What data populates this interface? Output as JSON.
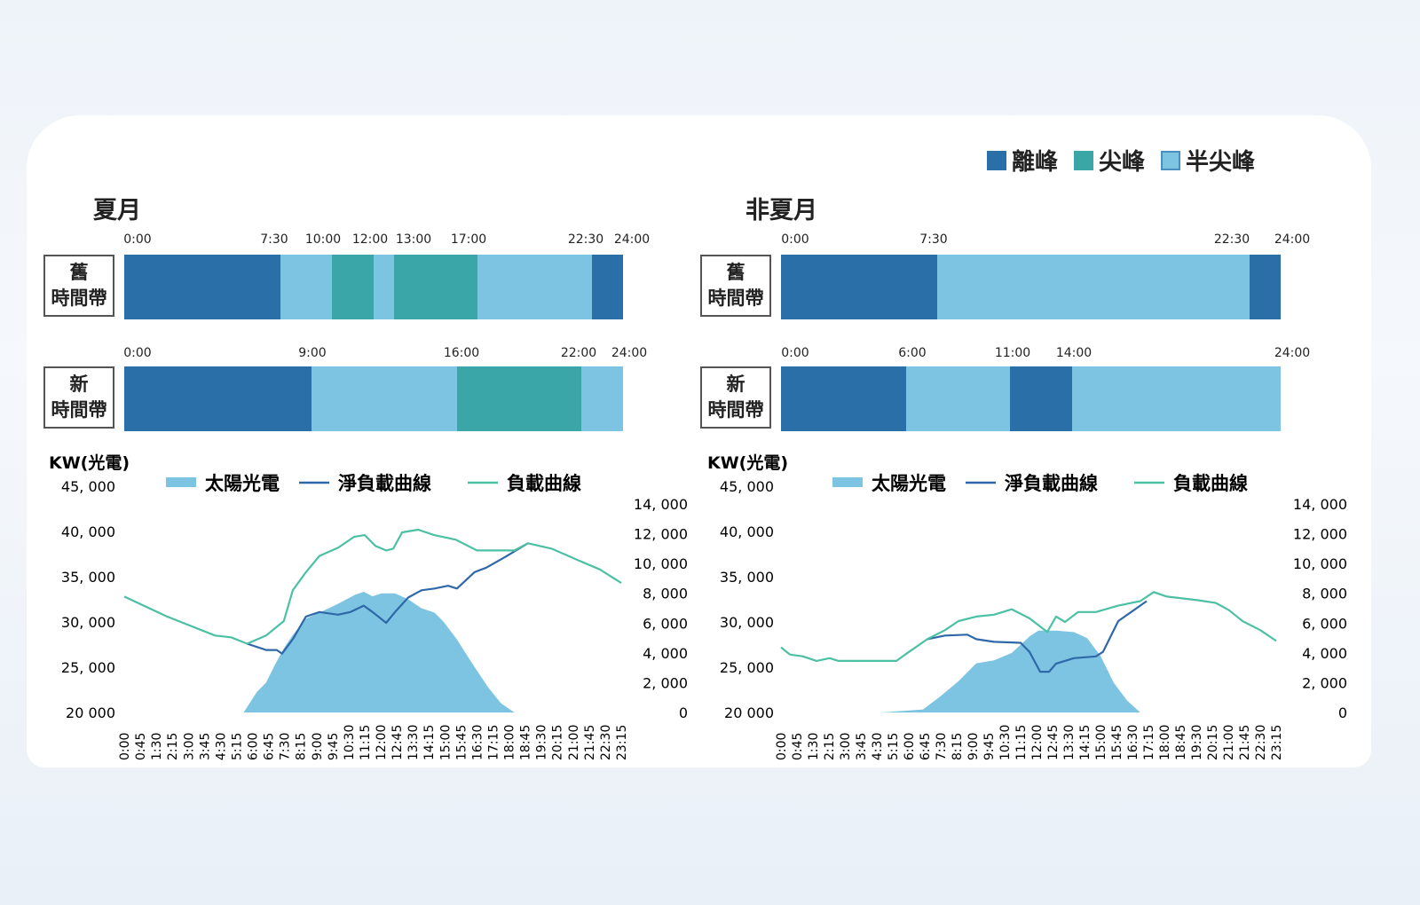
{
  "colors": {
    "off_peak": "#2a6fa8",
    "peak": "#3aa6a8",
    "mid_peak": "#7cc4e2",
    "load_line": "#4cc0a4",
    "net_line": "#2f68a8",
    "solar_fill": "#7cc4e2"
  },
  "legend": [
    {
      "key": "off_peak",
      "label": "離峰"
    },
    {
      "key": "peak",
      "label": "尖峰"
    },
    {
      "key": "mid_peak",
      "label": "半尖峰"
    }
  ],
  "panels": [
    {
      "title": "夏月",
      "old": {
        "label_line1": "舊",
        "label_line2": "時間帶",
        "ticks": [
          "0:00",
          "7:30",
          "10:00",
          "12:00",
          "13:00",
          "17:00",
          "22:30",
          "24:00"
        ],
        "segments": [
          [
            "0:00",
            "7:30",
            "off_peak"
          ],
          [
            "7:30",
            "10:00",
            "mid_peak"
          ],
          [
            "10:00",
            "12:00",
            "peak"
          ],
          [
            "12:00",
            "13:00",
            "mid_peak"
          ],
          [
            "13:00",
            "17:00",
            "peak"
          ],
          [
            "17:00",
            "22:30",
            "mid_peak"
          ],
          [
            "22:30",
            "24:00",
            "off_peak"
          ]
        ]
      },
      "new": {
        "label_line1": "新",
        "label_line2": "時間帶",
        "ticks": [
          "0:00",
          "9:00",
          "16:00",
          "22:00",
          "24:00"
        ],
        "segments": [
          [
            "0:00",
            "9:00",
            "off_peak"
          ],
          [
            "9:00",
            "16:00",
            "mid_peak"
          ],
          [
            "16:00",
            "22:00",
            "peak"
          ],
          [
            "22:00",
            "24:00",
            "mid_peak"
          ]
        ]
      },
      "chart_data": {
        "type": "line",
        "ylabel": "KW(光電)",
        "left_ticks": [
          "45, 000",
          "40, 000",
          "35, 000",
          "30, 000",
          "25, 000",
          "20 000"
        ],
        "left_ylim": [
          20000,
          45000
        ],
        "right_ticks": [
          "14, 000",
          "12, 000",
          "10, 000",
          "8, 000",
          "6, 000",
          "4, 000",
          "2, 000",
          "0"
        ],
        "right_ylim": [
          0,
          14000
        ],
        "x_ticks": [
          "0:00",
          "0:45",
          "1:30",
          "2:15",
          "3:00",
          "3:45",
          "4:30",
          "5:15",
          "6:00",
          "6:45",
          "7:30",
          "8:15",
          "9:00",
          "9:45",
          "10:30",
          "11:15",
          "12:00",
          "12:45",
          "13:30",
          "14:15",
          "15:00",
          "15:45",
          "16:30",
          "17:15",
          "18:00",
          "18:45",
          "19:30",
          "20:15",
          "21:00",
          "21:45",
          "22:30",
          "23:15"
        ],
        "series": [
          {
            "name": "太陽光電",
            "type": "area",
            "axis": "right",
            "points": [
              [
                "5:35",
                0
              ],
              [
                "6:13",
                1400
              ],
              [
                "6:38",
                2000
              ],
              [
                "7:03",
                3200
              ],
              [
                "7:28",
                4300
              ],
              [
                "7:53",
                5200
              ],
              [
                "8:30",
                6300
              ],
              [
                "9:08",
                6700
              ],
              [
                "10:00",
                7300
              ],
              [
                "10:48",
                7900
              ],
              [
                "11:12",
                8100
              ],
              [
                "11:37",
                7800
              ],
              [
                "12:02",
                8000
              ],
              [
                "12:40",
                8000
              ],
              [
                "13:17",
                7600
              ],
              [
                "13:54",
                7000
              ],
              [
                "14:31",
                6700
              ],
              [
                "14:56",
                6100
              ],
              [
                "15:34",
                4900
              ],
              [
                "16:11",
                3500
              ],
              [
                "17:01",
                1700
              ],
              [
                "17:38",
                600
              ],
              [
                "18:15",
                0
              ]
            ]
          },
          {
            "name": "淨負載曲線",
            "type": "line",
            "axis": "left",
            "points": [
              [
                "5:45",
                27600
              ],
              [
                "6:38",
                26900
              ],
              [
                "7:08",
                26900
              ],
              [
                "7:23",
                26500
              ],
              [
                "7:53",
                28100
              ],
              [
                "8:30",
                30600
              ],
              [
                "9:08",
                31100
              ],
              [
                "10:00",
                30800
              ],
              [
                "10:35",
                31100
              ],
              [
                "11:12",
                31800
              ],
              [
                "11:37",
                31100
              ],
              [
                "12:15",
                29900
              ],
              [
                "12:40",
                31100
              ],
              [
                "13:17",
                32700
              ],
              [
                "13:54",
                33500
              ],
              [
                "14:31",
                33700
              ],
              [
                "15:09",
                34000
              ],
              [
                "15:34",
                33700
              ],
              [
                "16:23",
                35500
              ],
              [
                "16:56",
                36000
              ],
              [
                "17:50",
                37200
              ],
              [
                "18:53",
                38700
              ]
            ]
          },
          {
            "name": "負載曲線",
            "type": "line",
            "axis": "left",
            "points": [
              [
                "0:00",
                32800
              ],
              [
                "2:00",
                30600
              ],
              [
                "4:15",
                28500
              ],
              [
                "5:00",
                28300
              ],
              [
                "5:45",
                27600
              ],
              [
                "6:38",
                28500
              ],
              [
                "7:28",
                30100
              ],
              [
                "7:53",
                33500
              ],
              [
                "8:30",
                35500
              ],
              [
                "9:08",
                37300
              ],
              [
                "10:00",
                38200
              ],
              [
                "10:45",
                39400
              ],
              [
                "11:15",
                39600
              ],
              [
                "11:45",
                38400
              ],
              [
                "12:15",
                37900
              ],
              [
                "12:35",
                38100
              ],
              [
                "13:00",
                39900
              ],
              [
                "13:45",
                40200
              ],
              [
                "14:30",
                39600
              ],
              [
                "15:30",
                39100
              ],
              [
                "16:30",
                37900
              ],
              [
                "18:15",
                37900
              ],
              [
                "18:53",
                38700
              ],
              [
                "20:00",
                38100
              ],
              [
                "21:15",
                36800
              ],
              [
                "22:15",
                35800
              ],
              [
                "23:15",
                34300
              ]
            ]
          }
        ]
      }
    },
    {
      "title": "非夏月",
      "old": {
        "label_line1": "舊",
        "label_line2": "時間帶",
        "ticks": [
          "0:00",
          "7:30",
          "22:30",
          "24:00"
        ],
        "segments": [
          [
            "0:00",
            "7:30",
            "off_peak"
          ],
          [
            "7:30",
            "22:30",
            "mid_peak"
          ],
          [
            "22:30",
            "24:00",
            "off_peak"
          ]
        ]
      },
      "new": {
        "label_line1": "新",
        "label_line2": "時間帶",
        "ticks": [
          "0:00",
          "6:00",
          "11:00",
          "14:00",
          "24:00"
        ],
        "segments": [
          [
            "0:00",
            "6:00",
            "off_peak"
          ],
          [
            "6:00",
            "11:00",
            "mid_peak"
          ],
          [
            "11:00",
            "14:00",
            "off_peak"
          ],
          [
            "14:00",
            "24:00",
            "mid_peak"
          ]
        ]
      },
      "chart_data": {
        "type": "line",
        "ylabel": "KW(光電)",
        "left_ticks": [
          "45, 000",
          "40, 000",
          "35, 000",
          "30, 000",
          "25, 000",
          "20 000"
        ],
        "left_ylim": [
          20000,
          45000
        ],
        "right_ticks": [
          "14, 000",
          "12, 000",
          "10, 000",
          "8, 000",
          "6, 000",
          "4, 000",
          "2, 000",
          "0"
        ],
        "right_ylim": [
          0,
          14000
        ],
        "x_ticks": [
          "0:00",
          "0:45",
          "1:30",
          "2:15",
          "3:00",
          "3:45",
          "4:30",
          "5:15",
          "6:00",
          "6:45",
          "7:30",
          "8:15",
          "9:00",
          "9:45",
          "10:30",
          "11:15",
          "12:00",
          "12:45",
          "13:30",
          "14:15",
          "15:00",
          "15:45",
          "16:30",
          "17:15",
          "18:00",
          "18:45",
          "19:30",
          "20:15",
          "21:00",
          "21:45",
          "22:30",
          "23:15"
        ],
        "series": [
          {
            "name": "太陽光電",
            "type": "area",
            "axis": "right",
            "points": [
              [
                "4:42",
                0
              ],
              [
                "6:40",
                200
              ],
              [
                "7:30",
                1100
              ],
              [
                "8:20",
                2100
              ],
              [
                "9:10",
                3300
              ],
              [
                "10:00",
                3500
              ],
              [
                "10:50",
                4000
              ],
              [
                "11:40",
                5100
              ],
              [
                "12:05",
                5500
              ],
              [
                "12:55",
                5500
              ],
              [
                "13:45",
                5400
              ],
              [
                "14:22",
                5000
              ],
              [
                "15:00",
                3800
              ],
              [
                "15:37",
                2000
              ],
              [
                "16:15",
                800
              ],
              [
                "16:52",
                0
              ]
            ]
          },
          {
            "name": "淨負載曲線",
            "type": "line",
            "axis": "left",
            "points": [
              [
                "6:52",
                28100
              ],
              [
                "7:42",
                28500
              ],
              [
                "8:45",
                28600
              ],
              [
                "9:10",
                28100
              ],
              [
                "10:00",
                27800
              ],
              [
                "11:15",
                27700
              ],
              [
                "11:40",
                26700
              ],
              [
                "12:10",
                24500
              ],
              [
                "12:35",
                24500
              ],
              [
                "12:55",
                25400
              ],
              [
                "13:45",
                26000
              ],
              [
                "14:47",
                26200
              ],
              [
                "15:07",
                26700
              ],
              [
                "15:50",
                30100
              ],
              [
                "17:10",
                32300
              ]
            ]
          },
          {
            "name": "負載曲線",
            "type": "line",
            "axis": "left",
            "points": [
              [
                "0:00",
                27200
              ],
              [
                "0:25",
                26400
              ],
              [
                "1:02",
                26200
              ],
              [
                "1:40",
                25700
              ],
              [
                "2:17",
                26000
              ],
              [
                "2:42",
                25700
              ],
              [
                "5:25",
                25700
              ],
              [
                "5:50",
                26400
              ],
              [
                "6:52",
                28100
              ],
              [
                "7:42",
                29100
              ],
              [
                "8:20",
                30100
              ],
              [
                "9:10",
                30600
              ],
              [
                "10:00",
                30800
              ],
              [
                "10:50",
                31400
              ],
              [
                "11:40",
                30400
              ],
              [
                "12:30",
                28900
              ],
              [
                "12:55",
                30600
              ],
              [
                "13:20",
                30000
              ],
              [
                "13:57",
                31100
              ],
              [
                "14:47",
                31100
              ],
              [
                "15:50",
                31800
              ],
              [
                "16:52",
                32300
              ],
              [
                "17:30",
                33300
              ],
              [
                "18:07",
                32800
              ],
              [
                "19:35",
                32400
              ],
              [
                "20:25",
                32100
              ],
              [
                "21:02",
                31300
              ],
              [
                "21:40",
                30100
              ],
              [
                "22:30",
                29100
              ],
              [
                "23:15",
                27900
              ]
            ]
          }
        ]
      }
    }
  ]
}
